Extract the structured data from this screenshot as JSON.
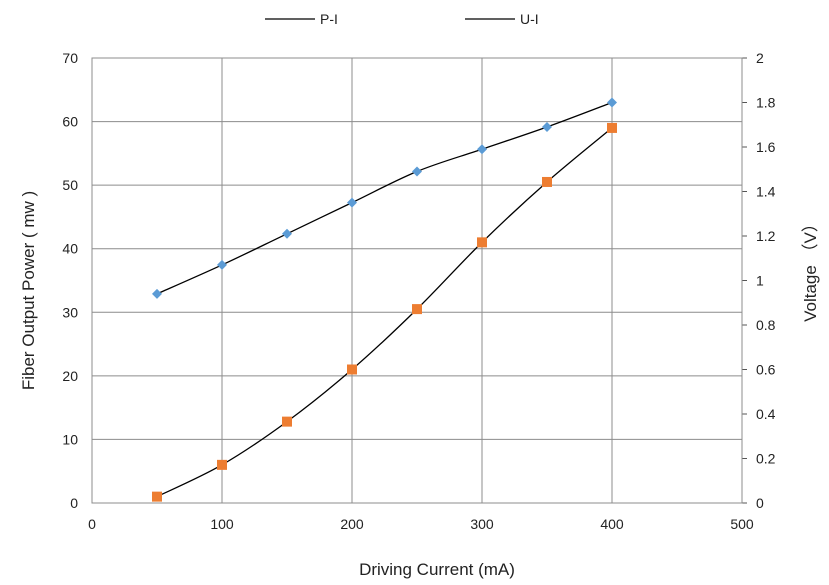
{
  "chart_data": {
    "type": "line",
    "x": [
      50,
      100,
      150,
      200,
      250,
      300,
      350,
      400
    ],
    "xlabel": "Driving Current (mA)",
    "ylabel": "Fiber Output Power ( mw )",
    "y2label": "Voltage （V）",
    "xlim": [
      0,
      500
    ],
    "ylim": [
      0,
      70
    ],
    "y2lim": [
      0,
      2
    ],
    "xticks": [
      "0",
      "100",
      "200",
      "300",
      "400",
      "500"
    ],
    "yticks": [
      "0",
      "10",
      "20",
      "30",
      "40",
      "50",
      "60",
      "70"
    ],
    "y2ticks": [
      "0",
      "0.2",
      "0.4",
      "0.6",
      "0.8",
      "1",
      "1.2",
      "1.4",
      "1.6",
      "1.8",
      "2"
    ],
    "grid": true,
    "legend_position": "top",
    "series": [
      {
        "name": "P-I",
        "axis": "right",
        "marker": "diamond",
        "marker_color": "#5b9bd5",
        "line_color": "#000000",
        "values": [
          0.94,
          1.07,
          1.21,
          1.35,
          1.49,
          1.59,
          1.69,
          1.8
        ]
      },
      {
        "name": "U-I",
        "axis": "left",
        "marker": "square",
        "marker_color": "#ed7d31",
        "line_color": "#000000",
        "values": [
          1,
          6,
          12.8,
          21,
          30.5,
          41,
          50.5,
          59
        ]
      }
    ]
  }
}
